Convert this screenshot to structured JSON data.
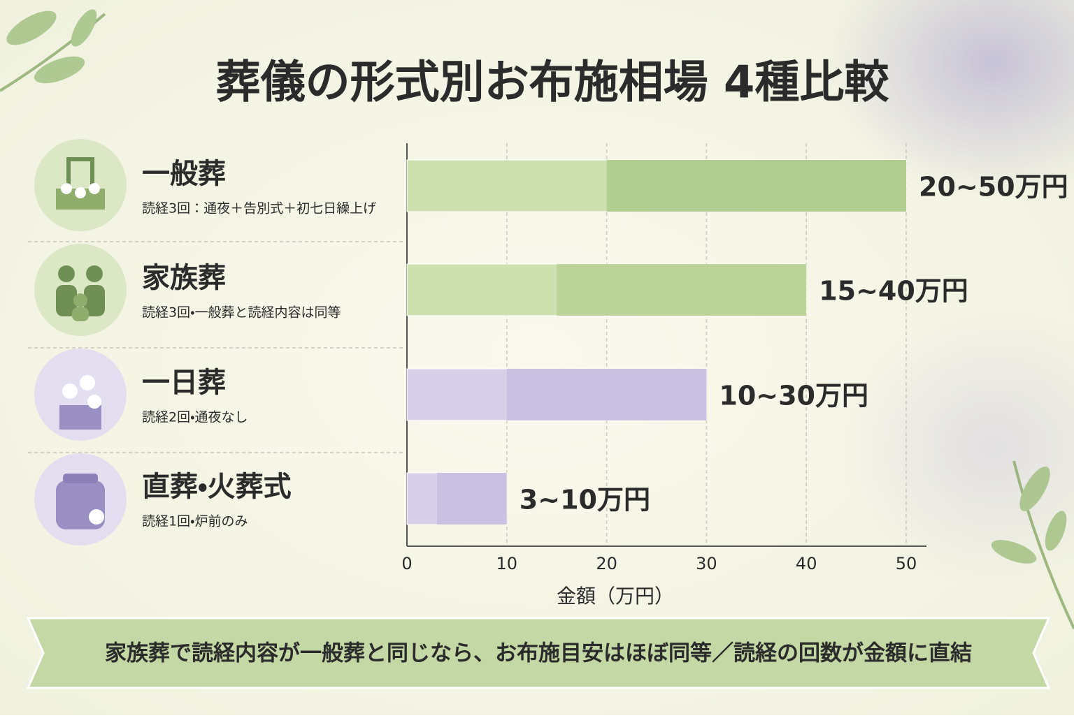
{
  "chart_data": {
    "type": "range_bar",
    "title": "葬儀の形式別お布施相場 4種比較",
    "categories": [
      "一般葬",
      "家族葬",
      "一日葬",
      "直葬・火葬式"
    ],
    "notes": [
      "読経3回：通夜＋告別式＋初七日繰上げ",
      "読経3回・一般葬と読経内容は同等",
      "読経2回・通夜なし",
      "読経1回・炉前のみ"
    ],
    "low": [
      20,
      15,
      10,
      3
    ],
    "high": [
      50,
      40,
      30,
      10
    ],
    "value_labels": [
      "20~50万円",
      "15~40万円",
      "10~30万円",
      "3~10万円"
    ],
    "colors": [
      "#cfe0b0",
      "#cfe0b0",
      "#d8d0e9",
      "#d8d0e9"
    ],
    "range_colors": [
      "#adc98b",
      "#b8d196",
      "#c8bde0",
      "#c8bde0"
    ],
    "xlim": [
      0,
      50
    ],
    "xticks": [
      0,
      10,
      20,
      30,
      40,
      50
    ],
    "xlabel": "金額（万円）",
    "grid": true,
    "footer": "家族葬で読経内容が一般葬と同じなら、お布施目安はほぼ同等／読経の回数が金額に直結"
  }
}
